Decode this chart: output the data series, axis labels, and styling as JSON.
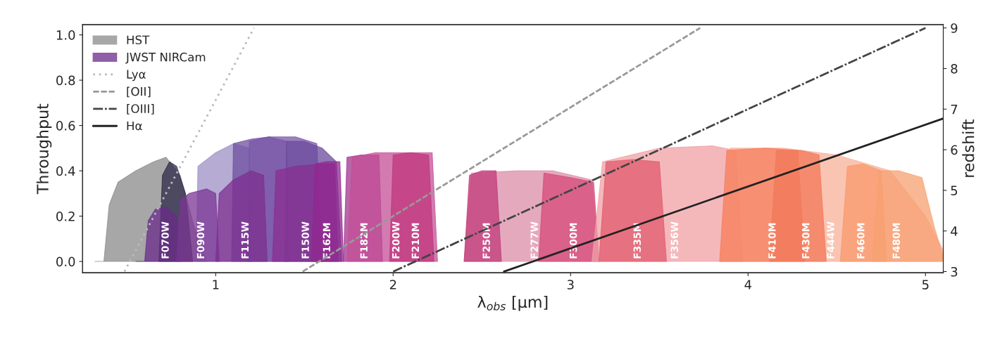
{
  "chart_data": {
    "type": "area",
    "xlabel": "λ$_{obs}$ [μm]",
    "ylabel": "Throughput",
    "y2label": "redshift",
    "xlim": [
      0.25,
      5.1
    ],
    "xticks": [
      1,
      2,
      3,
      4,
      5
    ],
    "ylim": [
      -0.05,
      1.045
    ],
    "yticks": [
      {
        "value": 0,
        "label": "0.0"
      },
      0.2,
      0.4,
      0.6,
      0.8,
      {
        "value": 1,
        "label": "1.0"
      }
    ],
    "y2lim": [
      2.97,
      9.08
    ],
    "y2ticks": [
      3,
      4,
      5,
      6,
      7,
      8,
      9
    ],
    "grid": false,
    "legend": "top left",
    "series": [
      {
        "name": "HST",
        "color": "#8a8a8a",
        "x": [
          0.32,
          0.37,
          0.4,
          0.45,
          0.55,
          0.65,
          0.72,
          0.8,
          0.88,
          0.95
        ],
        "values": [
          0,
          0,
          0.25,
          0.35,
          0.4,
          0.44,
          0.46,
          0.38,
          0.15,
          0
        ]
      },
      {
        "color": "#2e2a4a",
        "x": [
          0.68,
          0.7,
          0.74,
          0.78,
          0.83,
          0.87
        ],
        "values": [
          0,
          0.38,
          0.44,
          0.42,
          0.3,
          0
        ]
      },
      {
        "color": "#9c8fc4",
        "x": [
          0.89,
          0.9,
          1.0,
          1.1,
          1.19,
          1.2
        ],
        "values": [
          0,
          0.42,
          0.48,
          0.52,
          0.5,
          0
        ]
      },
      {
        "color": "#6f4f9f",
        "x": [
          1.09,
          1.1,
          1.2,
          1.3,
          1.4,
          1.41
        ],
        "values": [
          0,
          0.52,
          0.54,
          0.55,
          0.53,
          0
        ]
      },
      {
        "color": "#7a55a8",
        "x": [
          1.18,
          1.19,
          1.3,
          1.45,
          1.57,
          1.6
        ],
        "values": [
          0,
          0.53,
          0.55,
          0.55,
          0.52,
          0
        ]
      },
      {
        "color": "#6a4a9c",
        "x": [
          1.39,
          1.4,
          1.5,
          1.6,
          1.68,
          1.71
        ],
        "values": [
          0,
          0.53,
          0.53,
          0.5,
          0.44,
          0
        ]
      },
      {
        "name": "JWST NIRCam",
        "color": "#6a2b8a",
        "x": [
          0.55,
          0.6,
          0.62,
          0.66,
          0.72,
          0.78,
          0.8
        ],
        "values": [
          0,
          0,
          0.18,
          0.23,
          0.24,
          0.2,
          0
        ]
      },
      {
        "color": "#7b3494",
        "x": [
          0.78,
          0.8,
          0.85,
          0.95,
          1.0,
          1.02
        ],
        "values": [
          0,
          0.27,
          0.3,
          0.32,
          0.3,
          0
        ]
      },
      {
        "color": "#7d2f8f",
        "x": [
          1.0,
          1.02,
          1.1,
          1.2,
          1.27,
          1.29
        ],
        "values": [
          0,
          0.3,
          0.36,
          0.4,
          0.38,
          0
        ]
      },
      {
        "color": "#8a2d91",
        "x": [
          1.32,
          1.34,
          1.45,
          1.6,
          1.67,
          1.69
        ],
        "values": [
          0,
          0.4,
          0.42,
          0.43,
          0.43,
          0
        ]
      },
      {
        "color": "#92278f",
        "x": [
          1.54,
          1.56,
          1.62,
          1.7,
          1.72
        ],
        "values": [
          0,
          0.43,
          0.44,
          0.44,
          0
        ]
      },
      {
        "color": "#a2338f",
        "x": [
          1.72,
          1.74,
          1.82,
          1.92,
          1.94
        ],
        "values": [
          0,
          0.46,
          0.47,
          0.47,
          0
        ]
      },
      {
        "color": "#c44f95",
        "x": [
          1.74,
          1.77,
          1.9,
          2.05,
          2.22,
          2.25
        ],
        "values": [
          0,
          0.46,
          0.48,
          0.48,
          0.48,
          0
        ]
      },
      {
        "color": "#c0367e",
        "x": [
          1.98,
          2.0,
          2.1,
          2.2,
          2.23
        ],
        "values": [
          0,
          0.47,
          0.48,
          0.47,
          0
        ]
      },
      {
        "color": "#dc8ca8",
        "x": [
          2.4,
          2.44,
          2.7,
          2.9,
          3.12,
          3.16
        ],
        "values": [
          0,
          0.39,
          0.4,
          0.4,
          0.36,
          0
        ]
      },
      {
        "color": "#c0397a",
        "x": [
          2.4,
          2.43,
          2.5,
          2.58,
          2.61
        ],
        "values": [
          0,
          0.38,
          0.4,
          0.4,
          0
        ]
      },
      {
        "color": "#d44a78",
        "x": [
          2.82,
          2.85,
          3.0,
          3.13,
          3.16
        ],
        "values": [
          0,
          0.39,
          0.37,
          0.35,
          0
        ]
      },
      {
        "color": "#f0a0a4",
        "x": [
          3.12,
          3.18,
          3.5,
          3.8,
          3.93,
          3.97
        ],
        "values": [
          0,
          0.44,
          0.5,
          0.51,
          0.49,
          0
        ]
      },
      {
        "color": "#e25a6c",
        "x": [
          3.16,
          3.2,
          3.35,
          3.5,
          3.54
        ],
        "values": [
          0,
          0.44,
          0.45,
          0.44,
          0
        ]
      },
      {
        "color": "#f8b09a",
        "x": [
          3.84,
          3.9,
          4.2,
          4.5,
          4.8,
          5.0,
          5.1
        ],
        "values": [
          0,
          0.5,
          0.5,
          0.47,
          0.4,
          0.2,
          0.05
        ]
      },
      {
        "color": "#f57d5e",
        "x": [
          3.84,
          3.88,
          4.1,
          4.28,
          4.32
        ],
        "values": [
          0,
          0.49,
          0.5,
          0.49,
          0
        ]
      },
      {
        "color": "#f27858",
        "x": [
          4.12,
          4.16,
          4.3,
          4.4,
          4.44
        ],
        "values": [
          0,
          0.49,
          0.49,
          0.47,
          0
        ]
      },
      {
        "color": "#f89a6a",
        "x": [
          4.52,
          4.56,
          4.65,
          4.75,
          4.78
        ],
        "values": [
          0,
          0.42,
          0.43,
          0.4,
          0
        ]
      },
      {
        "color": "#f7a070",
        "x": [
          4.7,
          4.74,
          4.85,
          4.98,
          5.05,
          5.1
        ],
        "values": [
          0,
          0.4,
          0.4,
          0.37,
          0.15,
          0.02
        ]
      },
      {
        "name": "Lyα",
        "type": "line",
        "axis": "y2",
        "line_style": "dotted",
        "color": "#bbbbbb",
        "x": [
          0.486,
          1.216
        ],
        "values": [
          3,
          9
        ]
      },
      {
        "name": "[OII]",
        "type": "line",
        "axis": "y2",
        "line_style": "dashed",
        "color": "#999999",
        "x": [
          1.49,
          3.73
        ],
        "values": [
          3,
          9
        ]
      },
      {
        "name": "[OIII]",
        "type": "line",
        "axis": "y2",
        "line_style": "dashdot",
        "color": "#444444",
        "x": [
          2.0,
          5.0
        ],
        "values": [
          3,
          9
        ]
      },
      {
        "name": "Hα",
        "type": "line",
        "axis": "y2",
        "line_style": "solid",
        "color": "#222222",
        "x": [
          2.625,
          5.1
        ],
        "values": [
          3,
          6.77
        ]
      }
    ],
    "annotations": [
      {
        "text": "F070W",
        "x": 0.72,
        "y": 0.01
      },
      {
        "text": "F090W",
        "x": 0.92,
        "y": 0.01
      },
      {
        "text": "F115W",
        "x": 1.17,
        "y": 0.01
      },
      {
        "text": "F150W",
        "x": 1.51,
        "y": 0.01
      },
      {
        "text": "F162M",
        "x": 1.63,
        "y": 0.01
      },
      {
        "text": "F182M",
        "x": 1.84,
        "y": 0.01
      },
      {
        "text": "F200W",
        "x": 2.02,
        "y": 0.01
      },
      {
        "text": "F210M",
        "x": 2.13,
        "y": 0.01
      },
      {
        "text": "F250M",
        "x": 2.53,
        "y": 0.01
      },
      {
        "text": "F277W",
        "x": 2.8,
        "y": 0.01
      },
      {
        "text": "F300M",
        "x": 3.02,
        "y": 0.01
      },
      {
        "text": "F335M",
        "x": 3.38,
        "y": 0.01
      },
      {
        "text": "F356W",
        "x": 3.59,
        "y": 0.01
      },
      {
        "text": "F410M",
        "x": 4.14,
        "y": 0.01
      },
      {
        "text": "F430M",
        "x": 4.33,
        "y": 0.01
      },
      {
        "text": "F444W",
        "x": 4.47,
        "y": 0.01
      },
      {
        "text": "F460M",
        "x": 4.64,
        "y": 0.01
      },
      {
        "text": "F480M",
        "x": 4.84,
        "y": 0.01
      }
    ]
  }
}
